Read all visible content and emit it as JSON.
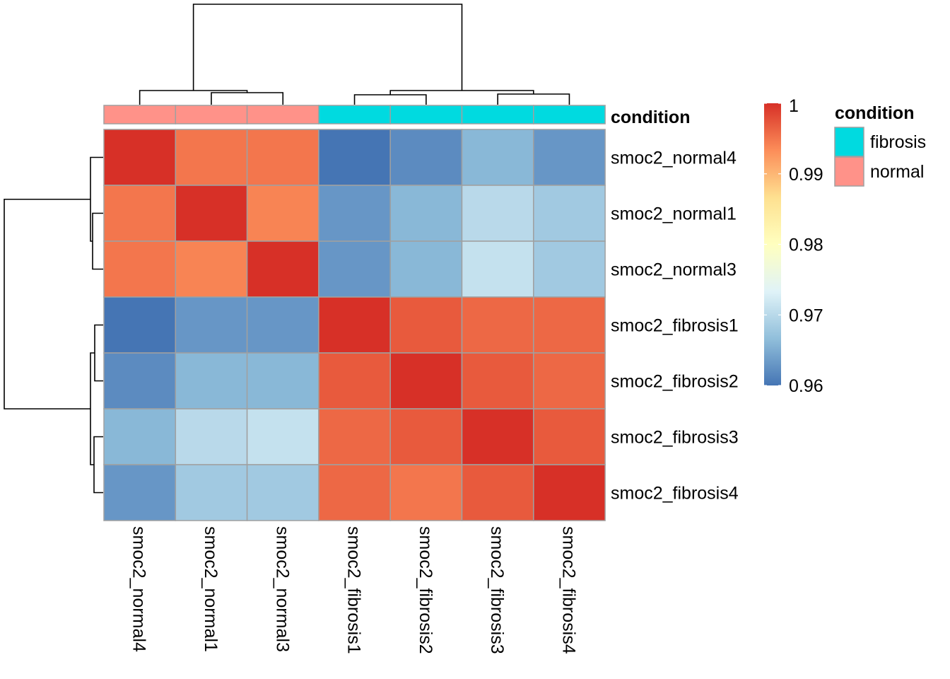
{
  "chart_data": {
    "type": "heatmap",
    "title": "",
    "columns": [
      "smoc2_normal4",
      "smoc2_normal1",
      "smoc2_normal3",
      "smoc2_fibrosis1",
      "smoc2_fibrosis2",
      "smoc2_fibrosis3",
      "smoc2_fibrosis4"
    ],
    "rows": [
      "smoc2_normal4",
      "smoc2_normal1",
      "smoc2_normal3",
      "smoc2_fibrosis1",
      "smoc2_fibrosis2",
      "smoc2_fibrosis3",
      "smoc2_fibrosis4"
    ],
    "values": [
      [
        1.0,
        0.995,
        0.995,
        0.96,
        0.962,
        0.966,
        0.963
      ],
      [
        0.995,
        1.0,
        0.994,
        0.963,
        0.966,
        0.97,
        0.968
      ],
      [
        0.995,
        0.994,
        1.0,
        0.963,
        0.966,
        0.971,
        0.968
      ],
      [
        0.96,
        0.963,
        0.963,
        1.0,
        0.997,
        0.996,
        0.996
      ],
      [
        0.962,
        0.966,
        0.966,
        0.997,
        1.0,
        0.997,
        0.996
      ],
      [
        0.966,
        0.97,
        0.971,
        0.996,
        0.997,
        1.0,
        0.997
      ],
      [
        0.963,
        0.968,
        0.968,
        0.996,
        0.995,
        0.997,
        1.0
      ]
    ],
    "color_scale": {
      "min": 0.96,
      "max": 1,
      "ticks": [
        "1",
        "0.99",
        "0.98",
        "0.97",
        "0.96"
      ],
      "tick_values": [
        1,
        0.99,
        0.98,
        0.97,
        0.96
      ],
      "colors": [
        "#4575B4",
        "#91BFDB",
        "#E0F3F8",
        "#FFFFBF",
        "#FEE090",
        "#FC8D59",
        "#D73027"
      ]
    },
    "annotation": {
      "label": "condition",
      "column_groups": [
        "normal",
        "normal",
        "normal",
        "fibrosis",
        "fibrosis",
        "fibrosis",
        "fibrosis"
      ],
      "legend_title": "condition",
      "legend": [
        {
          "label": "fibrosis",
          "color": "#00DAE0"
        },
        {
          "label": "normal",
          "color": "#FF9289"
        }
      ]
    },
    "grid": true,
    "cell_border_color": "#A0A0A0"
  }
}
